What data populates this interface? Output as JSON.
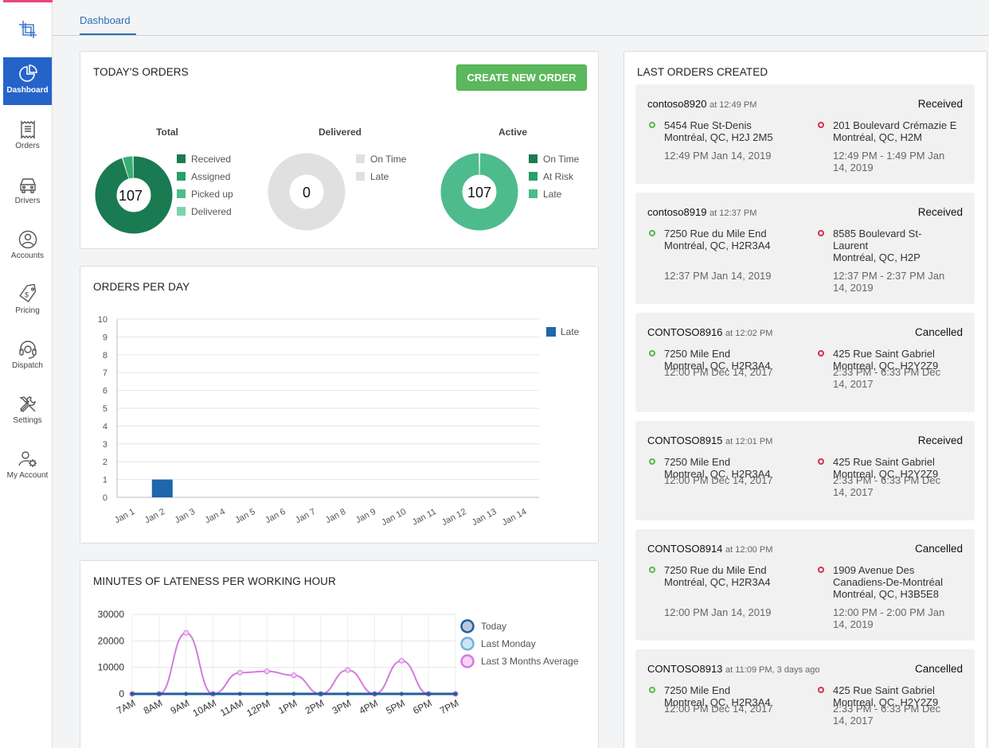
{
  "nav": {
    "items": [
      {
        "label": "Dashboard",
        "icon": "pie-chart-icon"
      },
      {
        "label": "Orders",
        "icon": "receipt-icon"
      },
      {
        "label": "Drivers",
        "icon": "car-icon"
      },
      {
        "label": "Accounts",
        "icon": "user-circle-icon"
      },
      {
        "label": "Pricing",
        "icon": "price-tag-icon"
      },
      {
        "label": "Dispatch",
        "icon": "headset-icon"
      },
      {
        "label": "Settings",
        "icon": "tools-icon"
      },
      {
        "label": "My Account",
        "icon": "user-gear-icon"
      }
    ]
  },
  "tabs": {
    "active": "Dashboard"
  },
  "todays_orders": {
    "title": "TODAY'S ORDERS",
    "create_button": "CREATE NEW ORDER",
    "donuts": [
      {
        "title": "Total",
        "center": "107",
        "legend": [
          "Received",
          "Assigned",
          "Picked up",
          "Delivered"
        ]
      },
      {
        "title": "Delivered",
        "center": "0",
        "legend": [
          "On Time",
          "Late"
        ]
      },
      {
        "title": "Active",
        "center": "107",
        "legend": [
          "On Time",
          "At Risk",
          "Late"
        ]
      }
    ]
  },
  "orders_per_day": {
    "title": "ORDERS PER DAY"
  },
  "lateness": {
    "title": "MINUTES OF LATENESS PER WORKING HOUR"
  },
  "last_orders": {
    "title": "LAST ORDERS CREATED",
    "orders": [
      {
        "id": "contoso8920",
        "time": "at 12:49 PM",
        "status": "Received",
        "pickup": [
          "5454 Rue St-Denis",
          "Montréal, QC, H2J 2M5"
        ],
        "pickup_time": "12:49 PM Jan 14, 2019",
        "drop": [
          "201 Boulevard Crémazie E",
          "Montréal, QC, H2M"
        ],
        "drop_time": [
          "12:49 PM - 1:49 PM Jan",
          "14, 2019"
        ]
      },
      {
        "id": "contoso8919",
        "time": "at 12:37 PM",
        "status": "Received",
        "pickup": [
          "7250 Rue du Mile End",
          "Montréal, QC, H2R3A4"
        ],
        "pickup_time": "12:37 PM Jan 14, 2019",
        "drop": [
          "8585 Boulevard St-",
          "Laurent",
          "Montréal, QC, H2P"
        ],
        "drop_time": [
          "12:37 PM - 2:37 PM Jan",
          "14, 2019"
        ]
      },
      {
        "id": "CONTOSO8916",
        "time": "at 12:02 PM",
        "status": "Cancelled",
        "pickup": [
          "7250 Mile End",
          "Montreal, QC, H2R3A4"
        ],
        "pickup_time": "12:00 PM Dec 14, 2017",
        "drop": [
          "425 Rue Saint Gabriel",
          "Montreal, QC, H2Y2Z9"
        ],
        "drop_time": [
          "2:33 PM - 6:33 PM Dec",
          "14, 2017"
        ]
      },
      {
        "id": "CONTOSO8915",
        "time": "at 12:01 PM",
        "status": "Received",
        "pickup": [
          "7250 Mile End",
          "Montreal, QC, H2R3A4"
        ],
        "pickup_time": "12:00 PM Dec 14, 2017",
        "drop": [
          "425 Rue Saint Gabriel",
          "Montreal, QC, H2Y2Z9"
        ],
        "drop_time": [
          "2:33 PM - 6:33 PM Dec",
          "14, 2017"
        ]
      },
      {
        "id": "CONTOSO8914",
        "time": "at 12:00 PM",
        "status": "Cancelled",
        "pickup": [
          "7250 Rue du Mile End",
          "Montréal, QC, H2R3A4"
        ],
        "pickup_time": "12:00 PM Jan 14, 2019",
        "drop": [
          "1909 Avenue Des",
          "Canadiens-De-Montréal",
          "Montréal, QC, H3B5E8"
        ],
        "drop_time": [
          "12:00 PM - 2:00 PM Jan",
          "14, 2019"
        ]
      },
      {
        "id": "CONTOSO8913",
        "time": "at 11:09 PM, 3 days ago",
        "status": "Cancelled",
        "pickup": [
          "7250 Mile End",
          "Montreal, QC, H2R3A4"
        ],
        "pickup_time": "12:00 PM Dec 14, 2017",
        "drop": [
          "425 Rue Saint Gabriel",
          "Montreal, QC, H2Y2Z9"
        ],
        "drop_time": [
          "2:33 PM - 6:33 PM Dec",
          "14, 2017"
        ]
      }
    ]
  },
  "colors": {
    "primary": "#2563c9",
    "green": "#5cb85c",
    "dark_green": "#1a7a52",
    "teal": "#4dbb8b",
    "bar": "#1f66ad",
    "purple": "#d57ae0"
  },
  "chart_data": [
    {
      "type": "bar",
      "categories": [
        "Jan 1",
        "Jan 2",
        "Jan 3",
        "Jan 4",
        "Jan 5",
        "Jan 6",
        "Jan 7",
        "Jan 8",
        "Jan 9",
        "Jan 10",
        "Jan 11",
        "Jan 12",
        "Jan 13",
        "Jan 14"
      ],
      "series": [
        {
          "name": "Late",
          "values": [
            0,
            1,
            0,
            0,
            0,
            0,
            0,
            0,
            0,
            0,
            0,
            0,
            0,
            0
          ]
        }
      ],
      "ylim": [
        0,
        10
      ],
      "yticks": [
        0,
        1,
        2,
        3,
        4,
        5,
        6,
        7,
        8,
        9,
        10
      ],
      "grid": true,
      "legend": "top-right"
    },
    {
      "type": "line",
      "x": [
        "7AM",
        "8AM",
        "9AM",
        "10AM",
        "11AM",
        "12PM",
        "1PM",
        "2PM",
        "3PM",
        "4PM",
        "5PM",
        "6PM",
        "7PM"
      ],
      "series": [
        {
          "name": "Today",
          "values": [
            0,
            0,
            0,
            0,
            0,
            0,
            0,
            0,
            0,
            0,
            0,
            0,
            0
          ]
        },
        {
          "name": "Last Monday",
          "values": [
            0,
            0,
            0,
            0,
            0,
            0,
            0,
            0,
            0,
            0,
            0,
            0,
            0
          ]
        },
        {
          "name": "Last 3 Months Average",
          "values": [
            0,
            0,
            23000,
            0,
            8000,
            8500,
            7000,
            0,
            9000,
            0,
            12500,
            0,
            0
          ]
        }
      ],
      "ylim": [
        0,
        30000
      ],
      "yticks": [
        0,
        10000,
        20000,
        30000
      ],
      "grid": true,
      "legend": "right"
    }
  ]
}
